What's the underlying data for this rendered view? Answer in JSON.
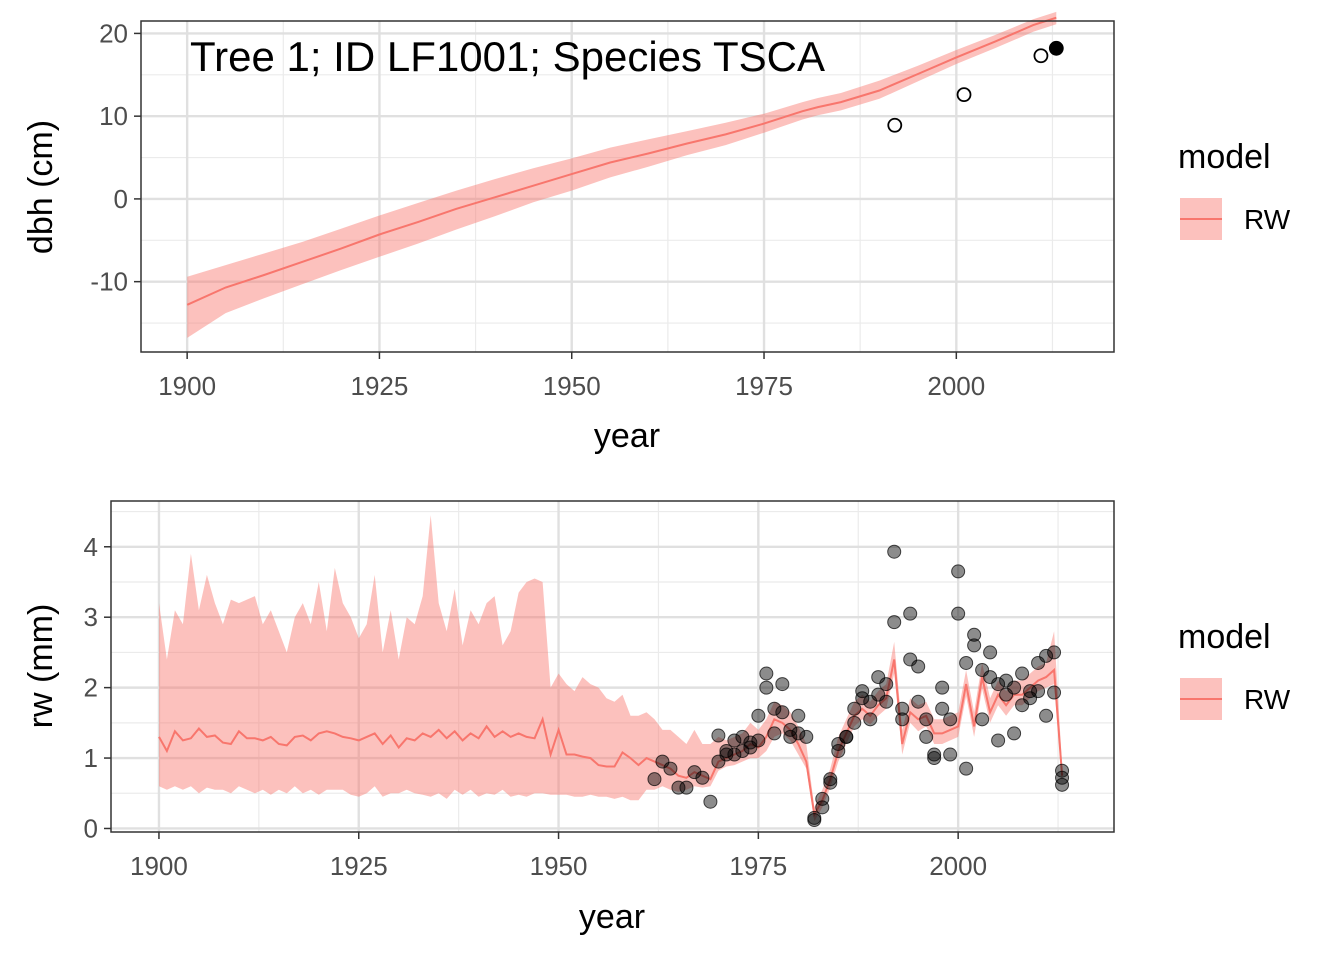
{
  "chart_data": [
    {
      "type": "line",
      "annotation": "Tree 1; ID LF1001; Species TSCA",
      "xlabel": "year",
      "ylabel": "dbh (cm)",
      "xlim": [
        1894,
        2020.5
      ],
      "ylim": [
        -18.5,
        21.5
      ],
      "xticks": [
        1900,
        1925,
        1950,
        1975,
        2000
      ],
      "yticks": [
        -10,
        0,
        10,
        20
      ],
      "grid": true,
      "legend": {
        "title": "model",
        "position": "right",
        "entries": [
          "RW"
        ]
      },
      "colors": {
        "line": "#F8766D",
        "band": "#F8766D",
        "band_opacity": 0.45
      },
      "series": [
        {
          "name": "RW",
          "x": [
            1900,
            1905,
            1910,
            1915,
            1920,
            1925,
            1930,
            1935,
            1940,
            1945,
            1950,
            1955,
            1960,
            1965,
            1970,
            1975,
            1980,
            1982,
            1985,
            1990,
            1995,
            2000,
            2005,
            2010,
            2013
          ],
          "y": [
            -12.8,
            -10.7,
            -9.2,
            -7.6,
            -6.0,
            -4.3,
            -2.8,
            -1.2,
            0.2,
            1.6,
            3.0,
            4.4,
            5.5,
            6.7,
            7.8,
            9.1,
            10.6,
            11.1,
            11.7,
            13.1,
            15.1,
            17.1,
            19.0,
            21.0,
            21.9
          ],
          "lower": [
            -16.8,
            -13.8,
            -12.0,
            -10.3,
            -8.6,
            -7.0,
            -5.4,
            -3.7,
            -2.1,
            -0.4,
            1.0,
            2.6,
            3.9,
            5.3,
            6.5,
            8.0,
            9.6,
            10.1,
            10.7,
            12.1,
            14.2,
            16.3,
            18.2,
            20.2,
            21.1
          ],
          "upper": [
            -9.4,
            -8.0,
            -6.6,
            -5.2,
            -3.6,
            -2.0,
            -0.5,
            1.0,
            2.4,
            3.7,
            4.9,
            6.2,
            7.2,
            8.2,
            9.2,
            10.3,
            11.7,
            12.2,
            12.8,
            14.3,
            16.1,
            18.0,
            19.8,
            21.7,
            22.6
          ]
        }
      ],
      "observations": [
        {
          "year": 1992,
          "dbh": 8.9,
          "filled": false
        },
        {
          "year": 2001,
          "dbh": 12.6,
          "filled": false
        },
        {
          "year": 2011,
          "dbh": 17.3,
          "filled": false
        },
        {
          "year": 2013,
          "dbh": 18.2,
          "filled": true
        }
      ]
    },
    {
      "type": "line",
      "xlabel": "year",
      "ylabel": "rw (mm)",
      "xlim": [
        1894,
        2019.5
      ],
      "ylim": [
        -0.05,
        4.65
      ],
      "xticks": [
        1900,
        1925,
        1950,
        1975,
        2000
      ],
      "yticks": [
        0,
        1,
        2,
        3,
        4
      ],
      "grid": true,
      "legend": {
        "title": "model",
        "position": "right",
        "entries": [
          "RW"
        ]
      },
      "colors": {
        "line": "#F8766D",
        "band": "#F8766D",
        "band_opacity": 0.45,
        "points": "#000000",
        "points_opacity": 0.45
      },
      "series": [
        {
          "name": "RW",
          "x": [
            1900,
            1901,
            1902,
            1903,
            1904,
            1905,
            1906,
            1907,
            1908,
            1909,
            1910,
            1911,
            1912,
            1913,
            1914,
            1915,
            1916,
            1917,
            1918,
            1919,
            1920,
            1921,
            1922,
            1923,
            1924,
            1925,
            1926,
            1927,
            1928,
            1929,
            1930,
            1931,
            1932,
            1933,
            1934,
            1935,
            1936,
            1937,
            1938,
            1939,
            1940,
            1941,
            1942,
            1943,
            1944,
            1945,
            1946,
            1947,
            1948,
            1949,
            1950,
            1951,
            1952,
            1953,
            1954,
            1955,
            1956,
            1957,
            1958,
            1959,
            1960,
            1961,
            1962,
            1963,
            1964,
            1965,
            1966,
            1967,
            1968,
            1969,
            1970,
            1971,
            1972,
            1973,
            1974,
            1975,
            1976,
            1977,
            1978,
            1979,
            1980,
            1981,
            1982,
            1983,
            1984,
            1985,
            1986,
            1987,
            1988,
            1989,
            1990,
            1991,
            1992,
            1993,
            1994,
            1995,
            1996,
            1997,
            1998,
            1999,
            2000,
            2001,
            2002,
            2003,
            2004,
            2005,
            2006,
            2007,
            2008,
            2009,
            2010,
            2011,
            2012,
            2013
          ],
          "y": [
            1.3,
            1.1,
            1.38,
            1.25,
            1.28,
            1.42,
            1.3,
            1.32,
            1.22,
            1.2,
            1.38,
            1.28,
            1.28,
            1.25,
            1.3,
            1.2,
            1.18,
            1.3,
            1.32,
            1.25,
            1.35,
            1.38,
            1.35,
            1.3,
            1.28,
            1.25,
            1.3,
            1.35,
            1.2,
            1.32,
            1.15,
            1.28,
            1.25,
            1.35,
            1.3,
            1.4,
            1.28,
            1.38,
            1.25,
            1.35,
            1.28,
            1.45,
            1.3,
            1.38,
            1.3,
            1.35,
            1.3,
            1.28,
            1.55,
            1.05,
            1.4,
            1.05,
            1.05,
            1.02,
            1.0,
            0.9,
            0.88,
            0.88,
            1.08,
            1.0,
            0.9,
            1.0,
            0.95,
            0.9,
            0.85,
            0.75,
            0.72,
            0.8,
            0.75,
            0.7,
            0.95,
            1.0,
            1.05,
            1.1,
            1.2,
            1.15,
            1.3,
            1.55,
            1.5,
            1.4,
            1.2,
            0.95,
            0.2,
            0.4,
            0.7,
            1.1,
            1.35,
            1.6,
            1.7,
            1.6,
            1.75,
            1.85,
            2.4,
            1.2,
            1.65,
            1.55,
            1.6,
            1.35,
            1.35,
            1.4,
            1.45,
            2.05,
            1.45,
            2.15,
            1.65,
            1.9,
            1.75,
            1.9,
            1.9,
            2.0,
            2.1,
            2.15,
            2.25,
            0.75
          ],
          "lower": [
            0.6,
            0.55,
            0.6,
            0.55,
            0.6,
            0.5,
            0.58,
            0.55,
            0.55,
            0.5,
            0.6,
            0.55,
            0.5,
            0.55,
            0.48,
            0.55,
            0.5,
            0.6,
            0.5,
            0.55,
            0.48,
            0.55,
            0.55,
            0.55,
            0.48,
            0.45,
            0.5,
            0.6,
            0.45,
            0.5,
            0.5,
            0.55,
            0.5,
            0.48,
            0.45,
            0.5,
            0.42,
            0.55,
            0.48,
            0.55,
            0.45,
            0.5,
            0.48,
            0.55,
            0.45,
            0.48,
            0.45,
            0.5,
            0.5,
            0.48,
            0.48,
            0.48,
            0.45,
            0.45,
            0.48,
            0.45,
            0.45,
            0.42,
            0.45,
            0.4,
            0.4,
            0.55,
            0.55,
            0.6,
            0.55,
            0.52,
            0.55,
            0.6,
            0.58,
            0.6,
            0.82,
            0.88,
            0.9,
            0.95,
            1.0,
            1.0,
            1.1,
            1.3,
            1.35,
            1.25,
            1.05,
            0.85,
            0.1,
            0.3,
            0.58,
            0.95,
            1.2,
            1.45,
            1.55,
            1.48,
            1.6,
            1.7,
            2.2,
            1.05,
            1.5,
            1.38,
            1.45,
            1.2,
            1.2,
            1.25,
            1.3,
            1.88,
            1.3,
            1.98,
            1.5,
            1.75,
            1.6,
            1.75,
            1.75,
            1.85,
            1.95,
            2.0,
            2.05,
            0.65
          ],
          "upper": [
            3.2,
            2.4,
            3.1,
            2.9,
            3.9,
            3.1,
            3.6,
            3.2,
            2.9,
            3.25,
            3.2,
            3.25,
            3.3,
            2.9,
            3.1,
            2.8,
            2.5,
            3.0,
            3.2,
            2.9,
            3.5,
            2.8,
            3.7,
            3.2,
            3.0,
            2.7,
            2.9,
            3.6,
            2.5,
            3.1,
            2.4,
            3.0,
            2.9,
            3.3,
            4.45,
            3.2,
            2.8,
            3.4,
            2.6,
            3.1,
            2.9,
            3.2,
            3.3,
            2.6,
            2.8,
            3.35,
            3.5,
            3.55,
            3.5,
            2.0,
            2.2,
            2.05,
            1.95,
            2.15,
            2.05,
            2.0,
            1.85,
            1.8,
            1.9,
            1.6,
            1.6,
            1.65,
            1.55,
            1.4,
            1.4,
            1.3,
            1.2,
            1.4,
            1.2,
            1.2,
            1.3,
            1.25,
            1.3,
            1.35,
            1.5,
            1.4,
            1.55,
            1.8,
            1.75,
            1.65,
            1.45,
            1.2,
            0.3,
            0.55,
            0.85,
            1.3,
            1.55,
            1.8,
            1.9,
            1.8,
            1.95,
            2.05,
            2.65,
            1.4,
            1.85,
            1.75,
            1.8,
            1.55,
            1.55,
            1.6,
            1.65,
            2.25,
            1.65,
            2.35,
            1.85,
            2.1,
            1.95,
            2.1,
            2.1,
            2.2,
            2.3,
            2.35,
            2.8,
            0.9
          ]
        }
      ],
      "observations": {
        "x": [
          1962,
          1963,
          1964,
          1965,
          1966,
          1967,
          1968,
          1969,
          1970,
          1970,
          1971,
          1971,
          1972,
          1972,
          1973,
          1973,
          1974,
          1974,
          1975,
          1975,
          1976,
          1976,
          1977,
          1977,
          1978,
          1978,
          1979,
          1979,
          1980,
          1980,
          1981,
          1982,
          1982,
          1983,
          1983,
          1984,
          1984,
          1985,
          1985,
          1986,
          1986,
          1987,
          1987,
          1988,
          1988,
          1989,
          1989,
          1990,
          1990,
          1991,
          1991,
          1992,
          1992,
          1993,
          1993,
          1994,
          1994,
          1995,
          1995,
          1996,
          1996,
          1997,
          1997,
          1998,
          1998,
          1999,
          1999,
          2000,
          2000,
          2001,
          2001,
          2002,
          2002,
          2003,
          2003,
          2004,
          2004,
          2005,
          2005,
          2006,
          2006,
          2007,
          2007,
          2008,
          2008,
          2009,
          2009,
          2010,
          2010,
          2011,
          2011,
          2012,
          2012,
          2013,
          2013,
          2013
        ],
        "y": [
          0.7,
          0.95,
          0.85,
          0.58,
          0.58,
          0.8,
          0.72,
          0.38,
          1.32,
          0.95,
          1.05,
          1.1,
          1.25,
          1.05,
          1.1,
          1.3,
          1.15,
          1.22,
          1.25,
          1.6,
          2.0,
          2.2,
          1.7,
          1.35,
          2.05,
          1.65,
          1.4,
          1.3,
          1.35,
          1.6,
          1.3,
          0.15,
          0.12,
          0.3,
          0.42,
          0.65,
          0.7,
          1.2,
          1.1,
          1.3,
          1.3,
          1.7,
          1.5,
          1.85,
          1.95,
          1.8,
          1.55,
          1.9,
          2.15,
          1.8,
          2.05,
          3.93,
          2.93,
          1.7,
          1.55,
          2.4,
          3.05,
          2.3,
          1.8,
          1.55,
          1.3,
          1.05,
          1.0,
          2.0,
          1.7,
          1.55,
          1.05,
          3.65,
          3.05,
          0.85,
          2.35,
          2.75,
          2.6,
          1.55,
          2.25,
          2.15,
          2.5,
          1.25,
          2.05,
          1.9,
          2.1,
          2.0,
          1.35,
          2.2,
          1.75,
          1.85,
          1.95,
          1.95,
          2.35,
          1.6,
          2.45,
          2.5,
          1.93,
          0.82,
          0.72,
          0.62
        ]
      }
    }
  ]
}
